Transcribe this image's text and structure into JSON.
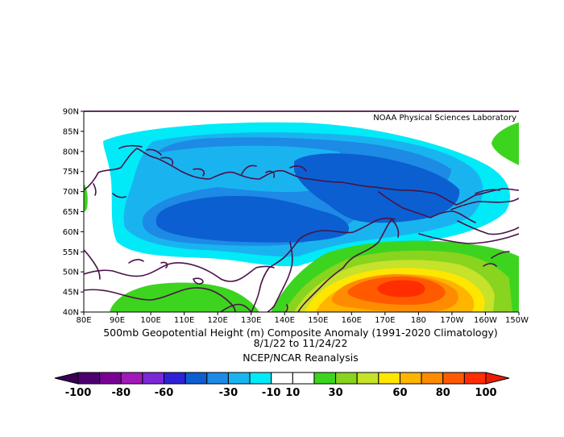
{
  "map": {
    "credit": "NOAA Physical Sciences Laboratory",
    "title": "500mb Geopotential Height (m) Composite Anomaly (1991-2020 Climatology)",
    "date_range": "8/1/22  to 11/24/22",
    "source": "NCEP/NCAR Reanalysis",
    "lat_labels": [
      "90N",
      "85N",
      "80N",
      "75N",
      "70N",
      "65N",
      "60N",
      "55N",
      "50N",
      "45N",
      "40N"
    ],
    "lon_labels": [
      "80E",
      "90E",
      "100E",
      "110E",
      "120E",
      "130E",
      "140E",
      "150E",
      "160E",
      "170E",
      "180",
      "170W",
      "160W",
      "150W"
    ],
    "lat_range": [
      40,
      90
    ],
    "lon_range": [
      80,
      210
    ],
    "colorbar": {
      "labels": [
        "-100",
        "-80",
        "-60",
        "-30",
        "-10",
        "10",
        "30",
        "60",
        "80",
        "100"
      ],
      "colors": [
        "#4c0070",
        "#7a0096",
        "#a11ab9",
        "#7a28d8",
        "#2f21d6",
        "#0c5fd0",
        "#1d8ae6",
        "#19b4f0",
        "#00eaf8",
        "#ffffff",
        "#ffffff",
        "#3cd41e",
        "#88d41e",
        "#c6e22a",
        "#ffe600",
        "#ffb400",
        "#ff8c00",
        "#ff5a00",
        "#ff2d00"
      ],
      "left_cap_color": "#3a0054",
      "right_cap_color": "#ee1c00"
    }
  }
}
